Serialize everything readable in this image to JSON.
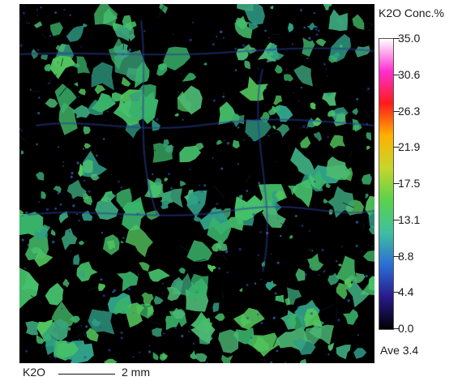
{
  "map": {
    "element": "K2O",
    "scale_title": "K2O  Conc.%",
    "colorbar_ticks": [
      "35.0",
      "30.6",
      "26.3",
      "21.9",
      "17.5",
      "13.1",
      "8.8",
      "4.4",
      "0.0"
    ],
    "colorbar_range": [
      0.0,
      35.0
    ],
    "colorbar_stops": [
      "#000000",
      "#2a1a8c",
      "#2b6fd6",
      "#3fbf9f",
      "#5ad24c",
      "#c6d62b",
      "#ffb000",
      "#ff1a1a",
      "#ff2fd0",
      "#ffffff"
    ],
    "average_label": "Ave 3.4",
    "scale_bar_label": "K2O",
    "scale_bar_length": "2 mm"
  }
}
